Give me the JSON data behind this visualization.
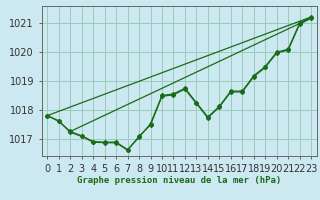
{
  "title": "Graphe pression niveau de la mer (hPa)",
  "bg_color": "#cce8f0",
  "plot_bg_color": "#cce8f0",
  "grid_color": "#99ccbb",
  "line_color": "#1a6b1a",
  "x_ticks": [
    0,
    1,
    2,
    3,
    4,
    5,
    6,
    7,
    8,
    9,
    10,
    11,
    12,
    13,
    14,
    15,
    16,
    17,
    18,
    19,
    20,
    21,
    22,
    23
  ],
  "ylim": [
    1016.4,
    1021.6
  ],
  "yticks": [
    1017,
    1018,
    1019,
    1020,
    1021
  ],
  "series1": [
    1017.8,
    1017.6,
    1017.25,
    1017.1,
    1016.9,
    1016.88,
    1016.88,
    1016.62,
    1017.05,
    1017.52,
    1018.5,
    1018.55,
    1018.75,
    1018.25,
    1017.75,
    1018.12,
    1018.65,
    1018.65,
    1019.18,
    1019.5,
    1020.0,
    1020.1,
    1021.0,
    1021.22
  ],
  "series2": [
    1017.8,
    1017.62,
    1017.22,
    1017.08,
    1016.88,
    1016.86,
    1016.86,
    1016.6,
    1017.08,
    1017.48,
    1018.47,
    1018.52,
    1018.72,
    1018.22,
    1017.72,
    1018.1,
    1018.62,
    1018.62,
    1019.15,
    1019.47,
    1019.97,
    1020.07,
    1020.97,
    1021.18
  ],
  "trend1_x": [
    0,
    23
  ],
  "trend1_y": [
    1017.8,
    1021.22
  ],
  "trend2_x": [
    2,
    23
  ],
  "trend2_y": [
    1017.25,
    1021.18
  ],
  "ylabel_fontsize": 7,
  "xlabel_fontsize": 7,
  "title_fontsize": 6.5
}
